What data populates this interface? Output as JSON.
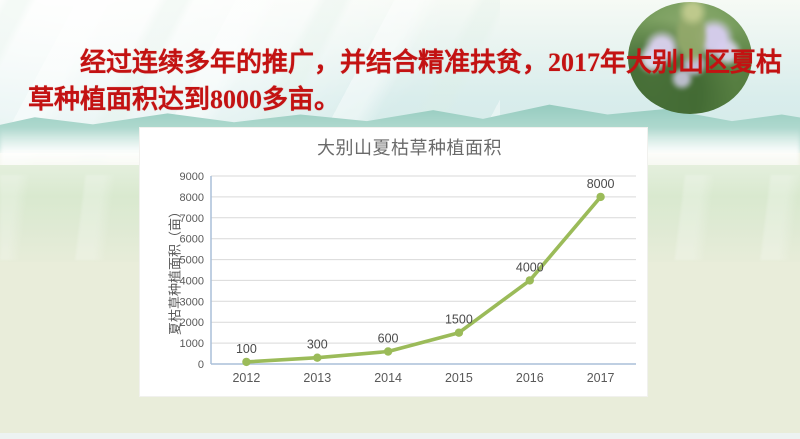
{
  "slide": {
    "caption": {
      "line1": "经过连续多年的推广，并结合精准扶贫，2017年大别山区夏枯",
      "line2": "草种植面积达到8000多亩。",
      "full_text": "经过连续多年的推广，并结合精准扶贫，2017年大别山区夏枯草种植面积达到8000多亩。",
      "color": "#c31212"
    },
    "flower_photo": "selfheal-plant-purple-flowers"
  },
  "chart_data": {
    "type": "line",
    "title": "大别山夏枯草种植面积",
    "categories": [
      "2012",
      "2013",
      "2014",
      "2015",
      "2016",
      "2017"
    ],
    "values": [
      100,
      300,
      600,
      1500,
      4000,
      8000
    ],
    "data_labels": [
      "100",
      "300",
      "600",
      "1500",
      "4000",
      "8000"
    ],
    "xlabel": "",
    "ylabel": "夏枯草种植面积（亩）",
    "ylim": [
      0,
      9000
    ],
    "ytick_step": 1000,
    "ytick_labels": [
      "0",
      "1000",
      "2000",
      "3000",
      "4000",
      "5000",
      "6000",
      "7000",
      "8000",
      "9000"
    ],
    "grid": true,
    "legend": "none",
    "line_color": "#9bbb59",
    "marker": "circle",
    "grid_color": "#d9d9d9",
    "axis_color": "#aabfd8",
    "tick_color": "#595959",
    "label_color": "#4a4a4a",
    "title_color": "#6a6a6a"
  }
}
